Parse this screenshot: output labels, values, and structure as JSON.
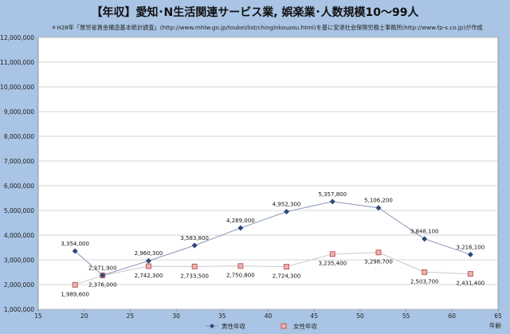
{
  "title": "【年収】愛知･N生活関連サービス業, 娯楽業･人数規模10～99人",
  "source_note": "＊H28年「厚労省賃金構造基本統計調査」(http://www.mhlw.go.jp/toukei/list/chinginkouzou.html)を基に安達社会保険労務士事務所(http://www.fp-s.co.jp)が作成",
  "colors": {
    "background": "#a9c4e4",
    "plot": "#ffffff",
    "male": "#2d4a7a",
    "male_line": "#8896b8",
    "female_fill": "#e8b4b4",
    "female_edge": "#c0504d",
    "female_line": "#c8c8c8"
  },
  "chart_data": {
    "type": "line",
    "xlabel": "年齢",
    "xlim": [
      15,
      65
    ],
    "ylim": [
      1000000,
      12000000
    ],
    "x_ticks": [
      15,
      20,
      25,
      30,
      35,
      40,
      45,
      50,
      55,
      60,
      65
    ],
    "y_ticks": [
      1000000,
      2000000,
      3000000,
      4000000,
      5000000,
      6000000,
      7000000,
      8000000,
      9000000,
      10000000,
      11000000,
      12000000
    ],
    "y_tick_labels": [
      "1,000,000",
      "2,000,000",
      "3,000,000",
      "4,000,000",
      "5,000,000",
      "6,000,000",
      "7,000,000",
      "8,000,000",
      "9,000,000",
      "10,000,000",
      "11,000,000",
      "12,000,000"
    ],
    "grid": true,
    "legend_position": "bottom",
    "series": [
      {
        "name": "男性年収",
        "marker": "diamond",
        "x": [
          19,
          22,
          27,
          32,
          37,
          42,
          47,
          52,
          57,
          62
        ],
        "y": [
          3354000,
          2376000,
          2960300,
          3583800,
          4289000,
          4952300,
          5357800,
          5106200,
          3848100,
          3216100
        ],
        "labels": [
          "3,354,000",
          "2,376,000",
          "2,960,300",
          "3,583,800",
          "4,289,000",
          "4,952,300",
          "5,357,800",
          "5,106,200",
          "3,848,100",
          "3,216,100"
        ]
      },
      {
        "name": "女性年収",
        "marker": "square",
        "x": [
          19,
          22,
          27,
          32,
          37,
          42,
          47,
          52,
          57,
          62
        ],
        "y": [
          1989600,
          2371900,
          2742300,
          2733500,
          2750800,
          2724300,
          3235400,
          3298700,
          2503700,
          2431400
        ],
        "labels": [
          "1,989,600",
          "2,371,900",
          "2,742,300",
          "2,733,500",
          "2,750,800",
          "2,724,300",
          "3,235,400",
          "3,298,700",
          "2,503,700",
          "2,431,400"
        ]
      }
    ]
  }
}
